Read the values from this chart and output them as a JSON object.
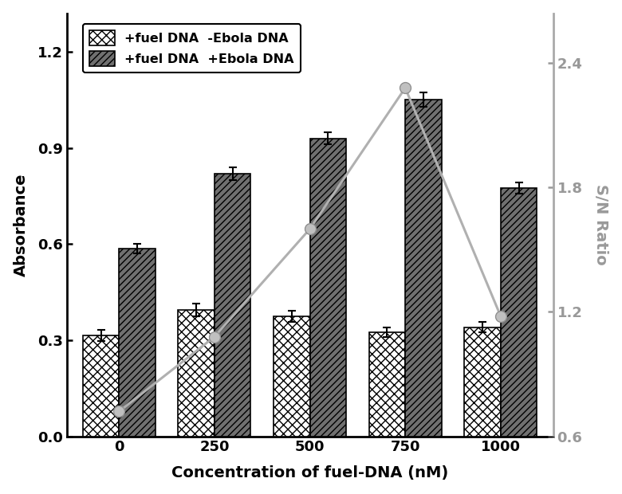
{
  "categories": [
    "0",
    "250",
    "500",
    "750",
    "1000"
  ],
  "bar_no_ebola": [
    0.315,
    0.395,
    0.375,
    0.325,
    0.34
  ],
  "bar_no_ebola_err": [
    0.018,
    0.02,
    0.018,
    0.015,
    0.016
  ],
  "bar_ebola": [
    0.585,
    0.82,
    0.93,
    1.05,
    0.775
  ],
  "bar_ebola_err": [
    0.015,
    0.02,
    0.018,
    0.022,
    0.018
  ],
  "sn_ratio": [
    0.72,
    1.08,
    1.6,
    2.28,
    1.18
  ],
  "xlabel": "Concentration of fuel-DNA (nM)",
  "ylabel_left": "Absorbance",
  "ylabel_right": "S/N Ratio",
  "ylim_left": [
    0.0,
    1.32
  ],
  "ylim_right": [
    0.6,
    2.64
  ],
  "yticks_left": [
    0.0,
    0.3,
    0.6,
    0.9,
    1.2
  ],
  "yticks_right": [
    0.6,
    1.2,
    1.8,
    2.4
  ],
  "legend_label1": "+fuel DNA  -Ebola DNA",
  "legend_label2": "+fuel DNA  +Ebola DNA",
  "line_color": "#b0b0b0",
  "background_color": "#ffffff",
  "bar_width": 0.38
}
